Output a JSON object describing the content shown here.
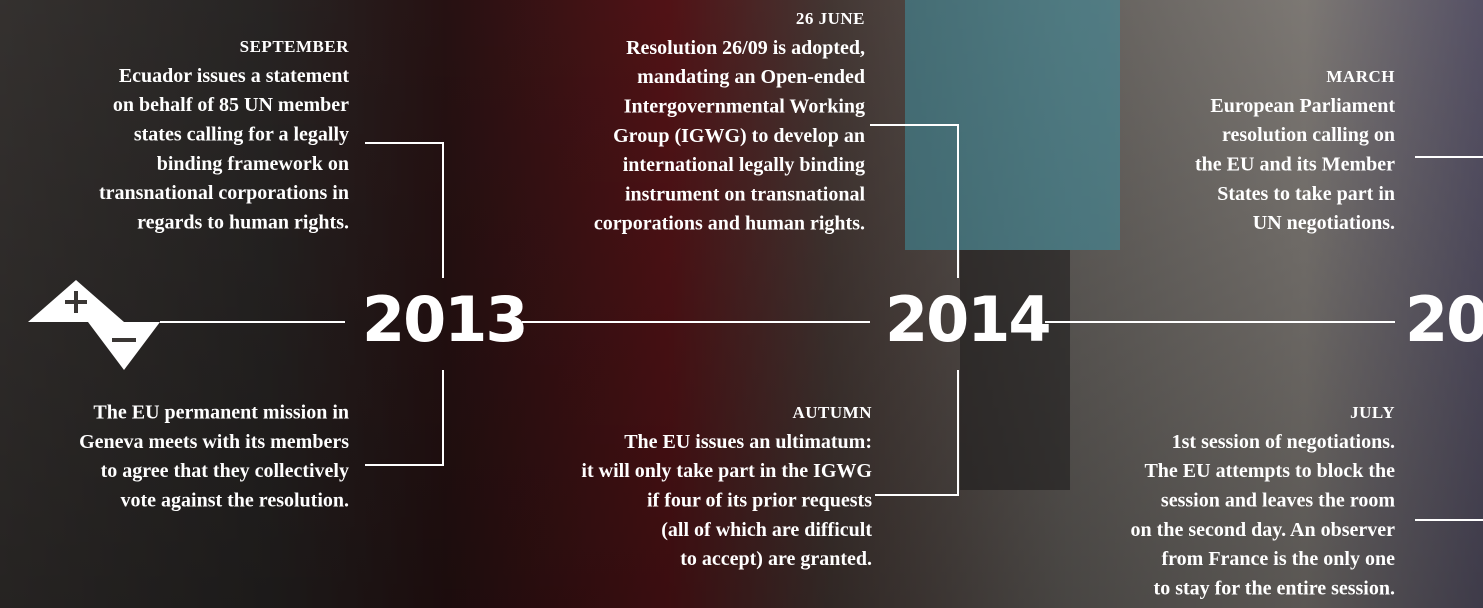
{
  "years": [
    "2013",
    "2014",
    "20"
  ],
  "events": [
    {
      "label": "SEPTEMBER",
      "lines": [
        "Ecuador issues a statement",
        "on behalf of 85 UN member",
        "states calling for a legally",
        "binding framework on",
        "transnational corporations in",
        "regards to human rights."
      ]
    },
    {
      "lines": [
        "The EU permanent mission in",
        "Geneva meets with its members",
        "to agree that they collectively",
        "vote against the resolution."
      ]
    },
    {
      "label": "26 JUNE",
      "lines": [
        "Resolution 26/09 is adopted,",
        "mandating an Open-ended",
        "Intergovernmental Working",
        "Group (IGWG) to develop an",
        "international legally binding",
        "instrument on transnational",
        "corporations and human rights."
      ]
    },
    {
      "label": "AUTUMN",
      "lines": [
        "The EU issues an ultimatum:",
        "it will only take part in the IGWG",
        "if four of its prior requests",
        "(all of which are difficult",
        "to accept) are granted."
      ]
    },
    {
      "label": "MARCH",
      "lines": [
        "European Parliament",
        "resolution calling on",
        "the EU and its Member",
        "States to take part in",
        "UN negotiations."
      ]
    },
    {
      "label": "JULY",
      "lines": [
        "1st session of negotiations.",
        "The EU attempts to block the",
        "session and leaves the room",
        "on the second day. An observer",
        "from France is the only one",
        "to stay for the entire session."
      ]
    }
  ]
}
